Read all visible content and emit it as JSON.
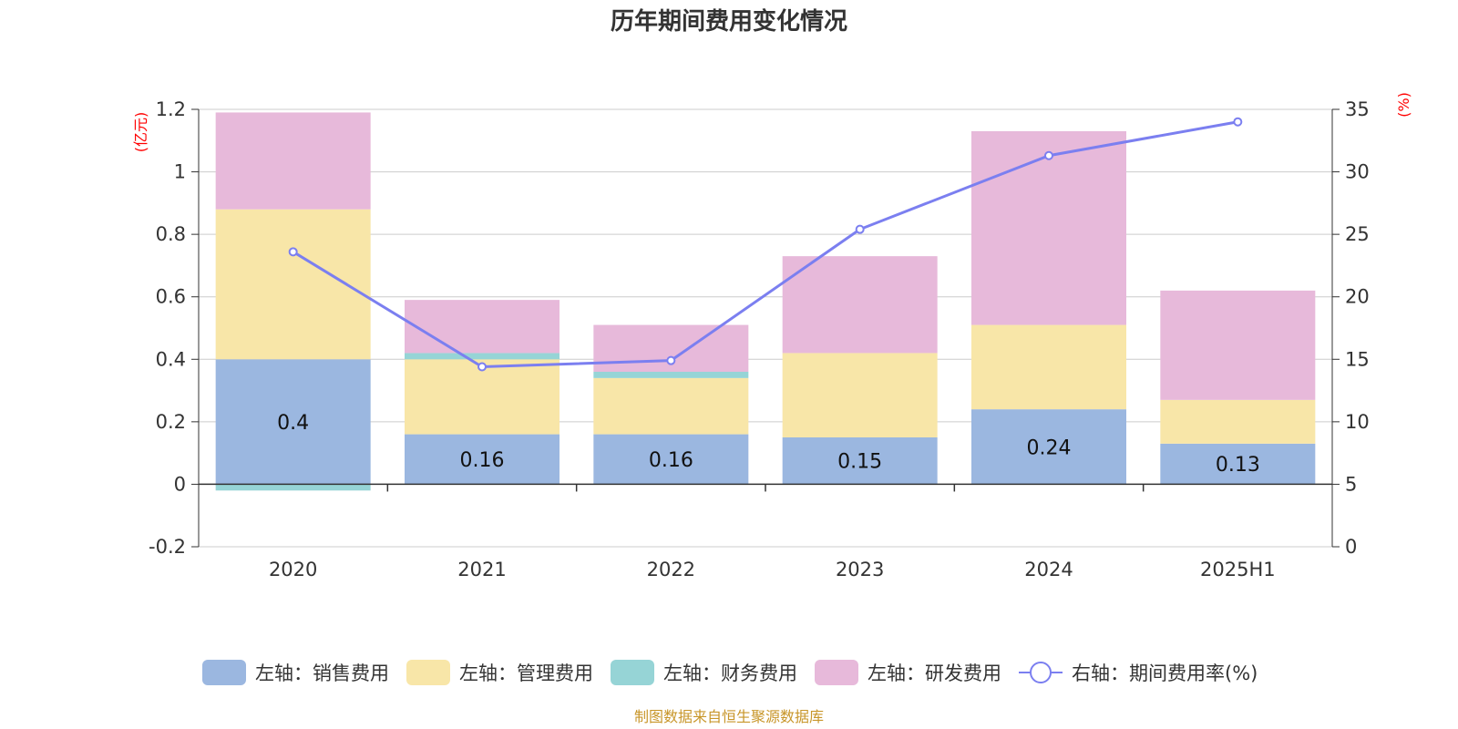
{
  "chart_data": {
    "type": "bar",
    "title": "历年期间费用变化情况",
    "categories": [
      "2020",
      "2021",
      "2022",
      "2023",
      "2024",
      "2025H1"
    ],
    "y_left": {
      "unit_label": "(亿元)",
      "min": -0.2,
      "max": 1.2,
      "ticks": [
        "-0.2",
        "0",
        "0.2",
        "0.4",
        "0.6",
        "0.8",
        "1",
        "1.2"
      ]
    },
    "y_right": {
      "unit_label": "(%)",
      "min": 0,
      "max": 35,
      "ticks": [
        "0",
        "5",
        "10",
        "15",
        "20",
        "25",
        "30",
        "35"
      ]
    },
    "series": [
      {
        "name": "左轴：销售费用",
        "type": "bar",
        "axis": "left",
        "color": "#9bb7e0",
        "values": [
          0.4,
          0.16,
          0.16,
          0.15,
          0.24,
          0.13
        ],
        "labels": [
          "0.4",
          "0.16",
          "0.16",
          "0.15",
          "0.24",
          "0.13"
        ]
      },
      {
        "name": "左轴：管理费用",
        "type": "bar",
        "axis": "left",
        "color": "#f8e6a8",
        "values": [
          0.48,
          0.24,
          0.18,
          0.27,
          0.27,
          0.14
        ]
      },
      {
        "name": "左轴：财务费用",
        "type": "bar",
        "axis": "left",
        "color": "#96d4d6",
        "values": [
          -0.02,
          0.02,
          0.02,
          0.0,
          0.0,
          0.0
        ]
      },
      {
        "name": "左轴：研发费用",
        "type": "bar",
        "axis": "left",
        "color": "#e7b9da",
        "values": [
          0.31,
          0.17,
          0.15,
          0.31,
          0.62,
          0.35
        ]
      },
      {
        "name": "右轴：期间费用率(%)",
        "type": "line",
        "axis": "right",
        "color": "#7b7ff0",
        "values": [
          23.6,
          14.4,
          14.9,
          25.4,
          31.3,
          34.0
        ]
      }
    ],
    "grid": true,
    "legend_position": "bottom"
  },
  "footer": {
    "source": "制图数据来自恒生聚源数据库"
  }
}
